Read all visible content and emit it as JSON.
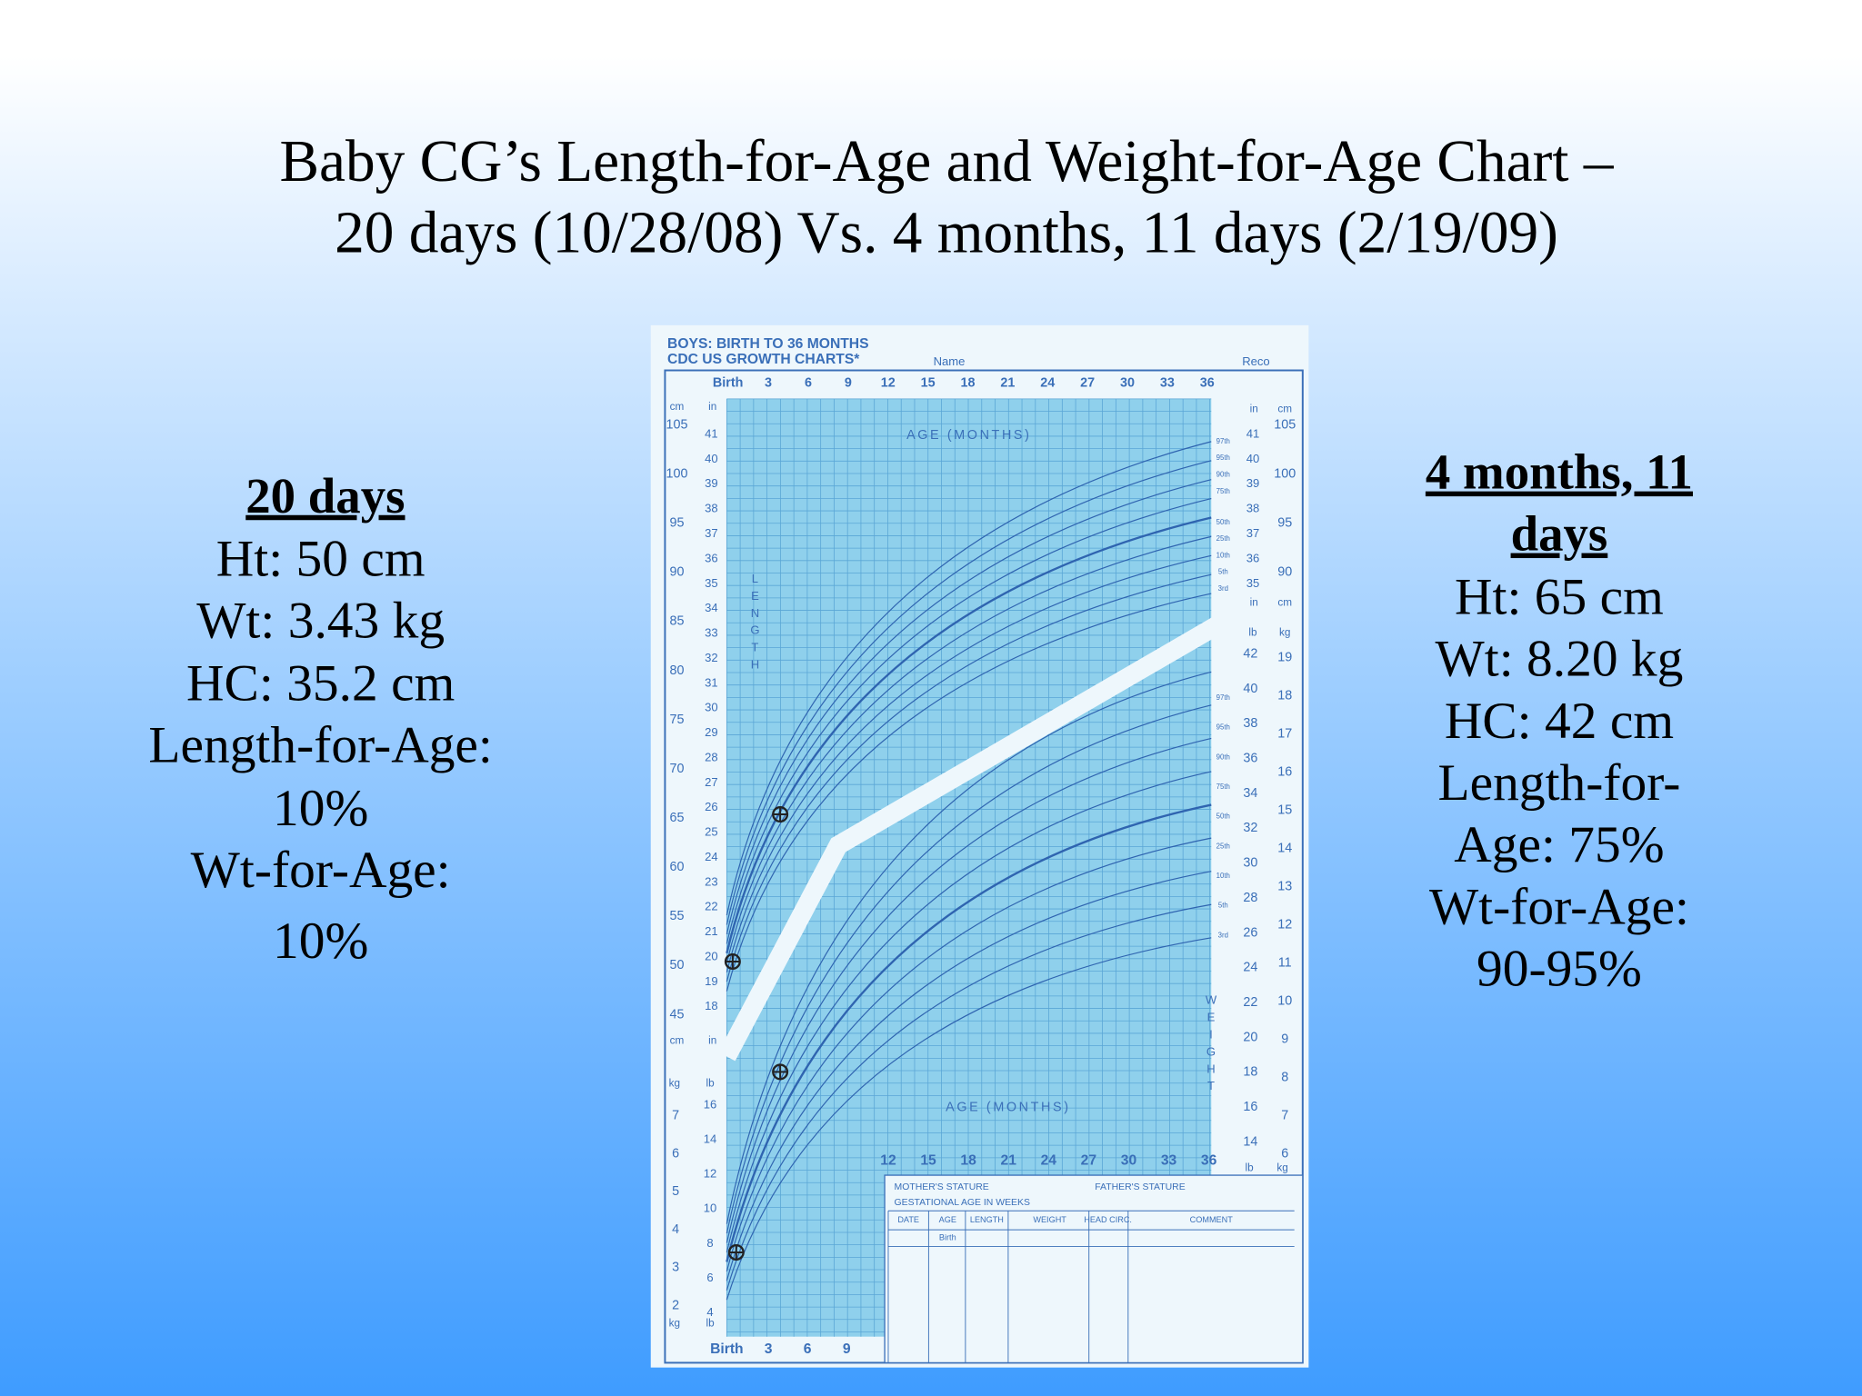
{
  "title": {
    "lines": [
      "Baby CG’s Length-for-Age and Weight-for-Age Chart –",
      "20 days (10/28/08) Vs. 4 months, 11 days (2/19/09)"
    ]
  },
  "left_panel": {
    "heading": "20 days",
    "lines": [
      "Ht: 50 cm",
      "Wt: 3.43 kg",
      "HC: 35.2 cm",
      "Length-for-Age:",
      "10%",
      "Wt-for-Age:",
      "10%"
    ]
  },
  "right_panel": {
    "heading": [
      "4 months, 11",
      "days"
    ],
    "lines": [
      "Ht: 65 cm",
      "Wt: 8.20 kg",
      "HC: 42 cm",
      "Length-for-",
      "Age: 75%",
      "Wt-for-Age:",
      "90-95%"
    ]
  },
  "growth_chart": {
    "header": [
      "BOYS: BIRTH TO 36 MONTHS",
      "CDC US GROWTH CHARTS*"
    ],
    "name_label": "Name",
    "record_label": "Reco",
    "top_age_labels": [
      "Birth",
      "3",
      "6",
      "9",
      "12",
      "15",
      "18",
      "21",
      "24",
      "27",
      "30",
      "33",
      "36"
    ],
    "age_axis_title": "AGE (MONTHS)",
    "length_label": "LENGTH",
    "weight_label": "WEIGHT",
    "units": {
      "cm": "cm",
      "in": "in",
      "lb": "lb",
      "kg": "kg"
    },
    "cm_ticks_left": [
      105,
      100,
      95,
      90,
      85,
      80,
      75,
      70,
      65,
      60,
      55,
      50,
      45
    ],
    "in_ticks_left": [
      41,
      40,
      39,
      38,
      37,
      36,
      35,
      34,
      33,
      32,
      31,
      30,
      29,
      28,
      27,
      26,
      25,
      24,
      23,
      22,
      21,
      20,
      19,
      18
    ],
    "in_ticks_right": [
      41,
      40,
      39,
      38,
      37,
      36,
      35
    ],
    "cm_ticks_right": [
      105,
      100,
      95,
      90
    ],
    "lb_ticks_right": [
      42,
      40,
      38,
      36,
      34,
      32,
      30,
      28,
      26,
      24,
      22,
      20,
      18,
      16,
      14
    ],
    "kg_ticks_right": [
      19,
      18,
      17,
      16,
      15,
      14,
      13,
      12,
      11,
      10,
      9,
      8,
      7,
      6
    ],
    "kg_ticks_left": [
      7,
      6,
      5,
      4,
      3,
      2
    ],
    "lb_ticks_left": [
      16,
      14,
      12,
      10,
      8,
      6,
      4
    ],
    "percentiles": [
      "97th",
      "95th",
      "90th",
      "75th",
      "50th",
      "25th",
      "10th",
      "5th",
      "3rd"
    ],
    "bottom_age_labels": [
      "12",
      "15",
      "18",
      "21",
      "24",
      "27",
      "30",
      "33",
      "36"
    ],
    "bottom_left_age_labels": [
      "Birth",
      "3",
      "6",
      "9"
    ],
    "record_table": {
      "mother": "MOTHER'S STATURE",
      "father": "FATHER'S STATURE",
      "gestational": "GESTATIONAL AGE IN WEEKS",
      "columns": [
        "DATE",
        "AGE",
        "LENGTH",
        "WEIGHT",
        "HEAD CIRC.",
        "COMMENT"
      ],
      "first_age": "Birth"
    }
  }
}
